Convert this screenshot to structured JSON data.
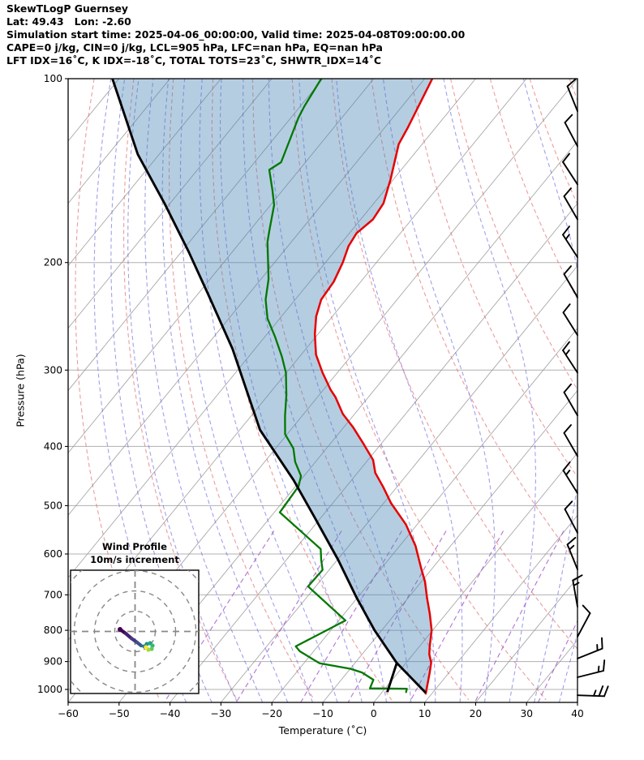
{
  "header": {
    "lines": [
      "SkewTLogP Guernsey",
      "Lat: 49.43   Lon: -2.60",
      "Simulation start time: 2025-04-06_00:00:00, Valid time: 2025-04-08T09:00:00.00",
      "CAPE=0 j/kg, CIN=0 j/kg, LCL=905 hPa, LFC=nan hPa, EQ=nan hPa",
      "LFT IDX=16˚C, K IDX=-18˚C, TOTAL TOTS=23˚C, SHWTR_IDX=14˚C"
    ]
  },
  "axes": {
    "x_label": "Temperature (˚C)",
    "y_label": "Pressure (hPa)",
    "x_ticks": [
      -60,
      -50,
      -40,
      -30,
      -20,
      -10,
      0,
      10,
      20,
      30,
      40
    ],
    "y_ticks": [
      100,
      200,
      300,
      400,
      500,
      600,
      700,
      800,
      900,
      1000
    ],
    "x_range": [
      -60,
      40
    ],
    "p_range": [
      100,
      1050
    ]
  },
  "colors": {
    "temperature": "#e60000",
    "dewpoint": "#007800",
    "parcel": "#000000",
    "shade": "#4682b4",
    "dry_adiabat": "#e06060",
    "moist_adiabat": "#6666e0",
    "mixing_ratio": "#a050c8",
    "isotherm": "#999999",
    "grid": "#b0b0b0",
    "barb": "#000000",
    "hodo_grid": "#888888"
  },
  "chart_data": {
    "type": "line",
    "title": "SkewTLogP Guernsey",
    "xlabel": "Temperature (˚C)",
    "ylabel": "Pressure (hPa)",
    "x_range_C": [
      -60,
      40
    ],
    "pressure_range_hPa": [
      100,
      1050
    ],
    "skew_deg": 45,
    "temperature_profile": [
      [
        100,
        -88.5
      ],
      [
        120,
        -85.5
      ],
      [
        128,
        -84.6
      ],
      [
        146,
        -80.6
      ],
      [
        160,
        -78.1
      ],
      [
        170,
        -77.6
      ],
      [
        179,
        -78.6
      ],
      [
        188,
        -78.1
      ],
      [
        200,
        -76.6
      ],
      [
        215,
        -75.3
      ],
      [
        230,
        -74.9
      ],
      [
        245,
        -73.2
      ],
      [
        262,
        -70.6
      ],
      [
        283,
        -67.1
      ],
      [
        303,
        -62.9
      ],
      [
        323,
        -58.6
      ],
      [
        332,
        -56.5
      ],
      [
        354,
        -52.3
      ],
      [
        372,
        -48.2
      ],
      [
        396,
        -43.5
      ],
      [
        421,
        -39.0
      ],
      [
        442,
        -36.5
      ],
      [
        466,
        -32.7
      ],
      [
        495,
        -28.6
      ],
      [
        537,
        -22.2
      ],
      [
        582,
        -16.9
      ],
      [
        632,
        -12.3
      ],
      [
        666,
        -9.3
      ],
      [
        708,
        -6.3
      ],
      [
        752,
        -3.2
      ],
      [
        800,
        -0.2
      ],
      [
        850,
        2.0
      ],
      [
        876,
        3.2
      ],
      [
        904,
        4.9
      ],
      [
        941,
        6.3
      ],
      [
        1016,
        8.8
      ]
    ],
    "dewpoint_profile": [
      [
        100,
        -110.3
      ],
      [
        111,
        -109.2
      ],
      [
        116,
        -108.5
      ],
      [
        137,
        -104.8
      ],
      [
        141,
        -105.9
      ],
      [
        152,
        -102.1
      ],
      [
        161,
        -99.3
      ],
      [
        177,
        -96.2
      ],
      [
        185,
        -94.7
      ],
      [
        213,
        -88.5
      ],
      [
        230,
        -85.8
      ],
      [
        247,
        -82.4
      ],
      [
        265,
        -77.9
      ],
      [
        285,
        -73.5
      ],
      [
        303,
        -70.1
      ],
      [
        329,
        -66.5
      ],
      [
        357,
        -63.3
      ],
      [
        382,
        -60.4
      ],
      [
        403,
        -56.5
      ],
      [
        424,
        -54.0
      ],
      [
        447,
        -50.6
      ],
      [
        465,
        -49.4
      ],
      [
        513,
        -48.9
      ],
      [
        589,
        -35.0
      ],
      [
        613,
        -33.2
      ],
      [
        637,
        -31.3
      ],
      [
        678,
        -31.5
      ],
      [
        771,
        -18.7
      ],
      [
        850,
        -24.3
      ],
      [
        866,
        -22.7
      ],
      [
        906,
        -16.9
      ],
      [
        925,
        -10.0
      ],
      [
        938,
        -7.1
      ],
      [
        964,
        -3.7
      ],
      [
        996,
        -3.0
      ],
      [
        997,
        4.3
      ],
      [
        1010,
        4.7
      ]
    ],
    "parcel_path": [
      [
        100,
        -151.3
      ],
      [
        133,
        -134.2
      ],
      [
        160,
        -121.1
      ],
      [
        192,
        -108.6
      ],
      [
        228,
        -97.2
      ],
      [
        277,
        -84.4
      ],
      [
        376,
        -66.0
      ],
      [
        454,
        -51.4
      ],
      [
        521,
        -41.5
      ],
      [
        613,
        -29.9
      ],
      [
        708,
        -20.1
      ],
      [
        800,
        -11.4
      ],
      [
        905,
        -1.8
      ],
      [
        1013,
        8.7
      ]
    ],
    "parcel_mixing_segment": [
      [
        905,
        -1.8
      ],
      [
        1010,
        1.0
      ]
    ],
    "lcl_hPa": 905,
    "isotherms": {
      "start": -160,
      "end": 40,
      "step": 10
    },
    "dry_adiabats": {
      "start": -45,
      "end": 180,
      "step": 15
    },
    "moist_adiabats": {
      "start": -40,
      "end": 125,
      "step": 5
    },
    "mixing_ratios_g_kg": [
      0.1,
      0.4,
      1.2,
      2.5,
      6,
      14,
      30
    ],
    "mixing_ratio_top_hPa": 550,
    "wind_barbs": [
      {
        "p": 113,
        "angle": -22,
        "full": 1,
        "half": 0
      },
      {
        "p": 129,
        "angle": -28,
        "full": 1,
        "half": 0
      },
      {
        "p": 149,
        "angle": -33,
        "full": 1,
        "half": 0
      },
      {
        "p": 170,
        "angle": -30,
        "full": 1,
        "half": 0
      },
      {
        "p": 196,
        "angle": -33,
        "full": 1,
        "half": 1
      },
      {
        "p": 228,
        "angle": -30,
        "full": 1,
        "half": 0
      },
      {
        "p": 263,
        "angle": -32,
        "full": 1,
        "half": 0
      },
      {
        "p": 303,
        "angle": -33,
        "full": 1,
        "half": 1
      },
      {
        "p": 356,
        "angle": -30,
        "full": 1,
        "half": 0
      },
      {
        "p": 415,
        "angle": -30,
        "full": 1,
        "half": 0
      },
      {
        "p": 477,
        "angle": -32,
        "full": 1,
        "half": 1
      },
      {
        "p": 554,
        "angle": -28,
        "full": 1,
        "half": 0
      },
      {
        "p": 636,
        "angle": -22,
        "full": 1,
        "half": 1
      },
      {
        "p": 732,
        "angle": -10,
        "full": 1,
        "half": 1
      },
      {
        "p": 820,
        "angle": 28,
        "full": 1,
        "half": 0
      },
      {
        "p": 890,
        "angle": 68,
        "full": 1,
        "half": 1
      },
      {
        "p": 955,
        "angle": 76,
        "full": 1,
        "half": 1
      },
      {
        "p": 1022,
        "angle": 92,
        "full": 2,
        "half": 1
      }
    ],
    "hodograph": {
      "title": "Wind Profile",
      "subtitle": "10m/s increment",
      "ring_interval_ms": 10,
      "rings_ms": [
        10,
        20,
        30,
        40
      ],
      "trace_uv_ms": [
        [
          -7.4,
          1.0
        ],
        [
          -4.6,
          -1.0
        ],
        [
          -1.8,
          -3.4
        ],
        [
          1.0,
          -5.4
        ],
        [
          3.0,
          -7.0
        ],
        [
          4.6,
          -7.4
        ],
        [
          5.8,
          -6.2
        ],
        [
          7.4,
          -5.8
        ],
        [
          8.6,
          -7.0
        ],
        [
          8.2,
          -8.6
        ],
        [
          6.6,
          -9.0
        ],
        [
          5.4,
          -7.8
        ]
      ],
      "trace_colors": [
        "#440154",
        "#481f70",
        "#443983",
        "#3b528b",
        "#31688e",
        "#287c8e",
        "#21918c",
        "#20a486",
        "#35b779",
        "#5ec962",
        "#a0da39",
        "#fde725"
      ]
    }
  }
}
